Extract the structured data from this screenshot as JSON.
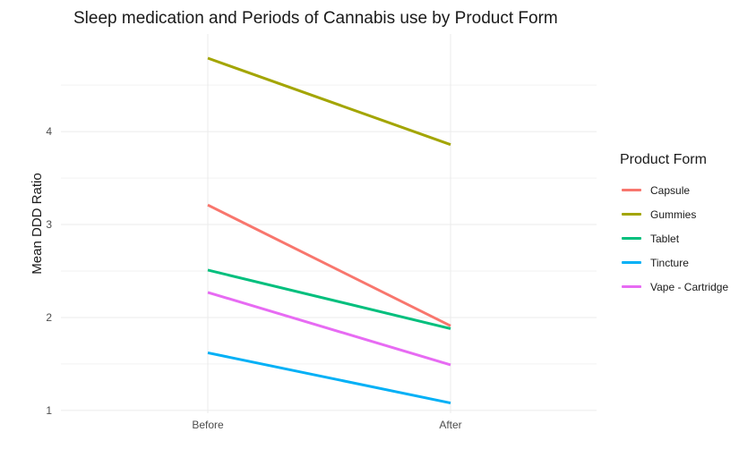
{
  "chart_data": {
    "type": "line",
    "title": "Sleep medication and Periods of Cannabis use by Product Form",
    "xlabel": "",
    "ylabel": "Mean DDD Ratio",
    "categories": [
      "Before",
      "After"
    ],
    "y_ticks": [
      "1",
      "2",
      "3",
      "4"
    ],
    "ylim": [
      0.97,
      5.05
    ],
    "grid": true,
    "legend_title": "Product Form",
    "legend_position": "right",
    "series": [
      {
        "name": "Capsule",
        "color": "#F8766D",
        "values": [
          3.21,
          1.91
        ]
      },
      {
        "name": "Gummies",
        "color": "#A3A500",
        "values": [
          4.79,
          3.86
        ]
      },
      {
        "name": "Tablet",
        "color": "#00BF7D",
        "values": [
          2.51,
          1.88
        ]
      },
      {
        "name": "Tincture",
        "color": "#00B0F6",
        "values": [
          1.62,
          1.08
        ]
      },
      {
        "name": "Vape - Cartridge",
        "color": "#E76BF3",
        "values": [
          2.27,
          1.49
        ]
      }
    ]
  }
}
